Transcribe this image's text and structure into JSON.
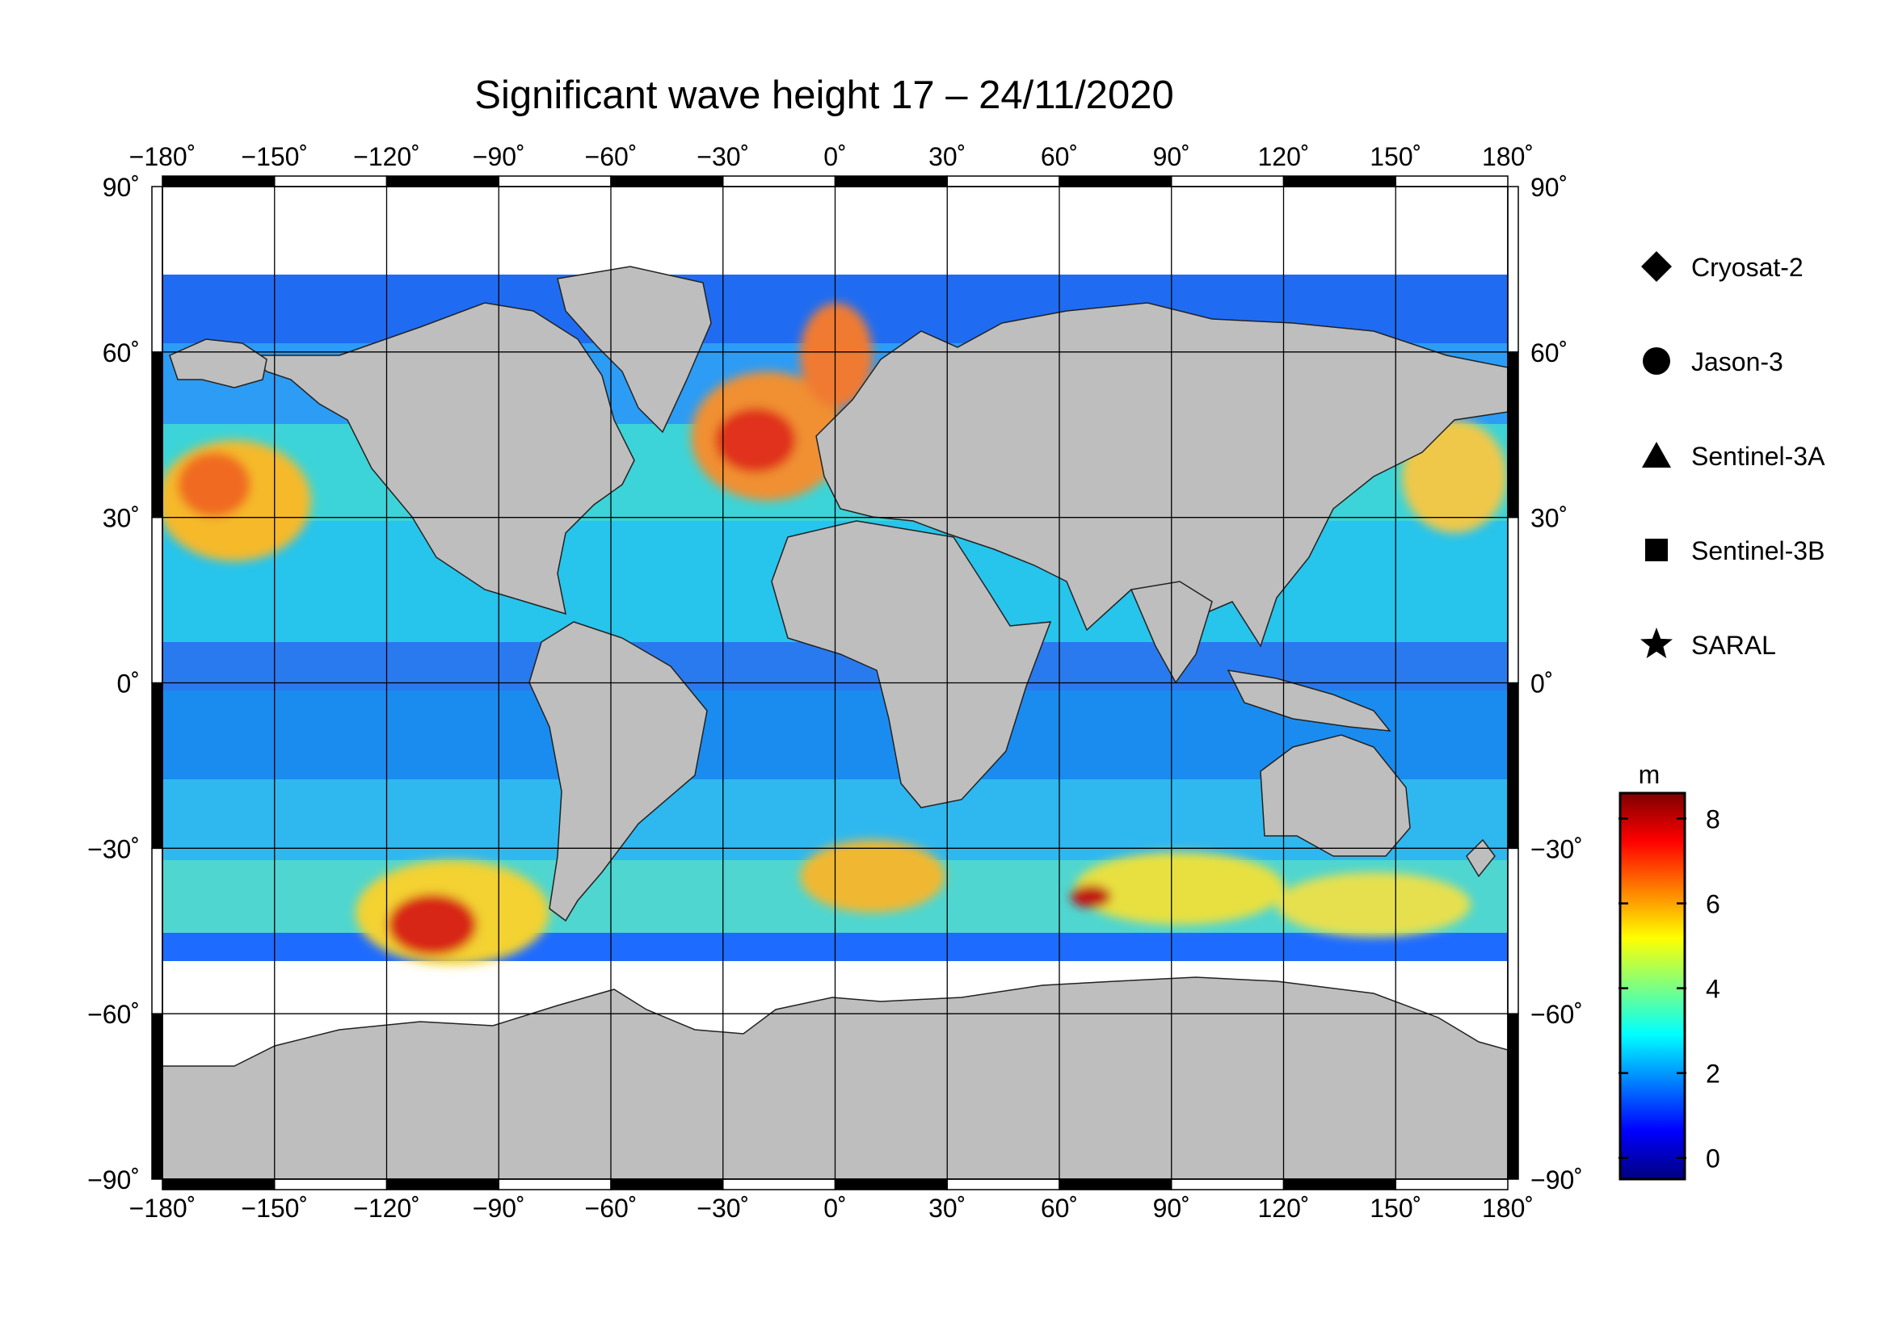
{
  "title": "Significant wave height 17 – 24/11/2020",
  "map": {
    "projection": "equirectangular",
    "lon_range": [
      -180,
      180
    ],
    "lat_range": [
      -90,
      90
    ],
    "grid": true,
    "lon_ticks": [
      -180,
      -150,
      -120,
      -90,
      -60,
      -30,
      0,
      30,
      60,
      90,
      120,
      150,
      180
    ],
    "lat_ticks": [
      -90,
      -60,
      -30,
      0,
      30,
      60,
      90
    ],
    "lon_tick_labels": [
      "−180˚",
      "−150˚",
      "−120˚",
      "−90˚",
      "−60˚",
      "−30˚",
      "0˚",
      "30˚",
      "60˚",
      "90˚",
      "120˚",
      "150˚",
      "180˚"
    ],
    "lat_tick_labels": [
      "−90˚",
      "−60˚",
      "−30˚",
      "0˚",
      "30˚",
      "60˚",
      "90˚"
    ],
    "land_color": "#bebebe",
    "ice_color": "#ffffff",
    "ocean_gap_color": "#ffffff"
  },
  "legend": {
    "placement": "right",
    "items": [
      {
        "label": "Cryosat-2",
        "symbol": "diamond"
      },
      {
        "label": "Jason-3",
        "symbol": "circle"
      },
      {
        "label": "Sentinel-3A",
        "symbol": "triangle"
      },
      {
        "label": "Sentinel-3B",
        "symbol": "square"
      },
      {
        "label": "SARAL",
        "symbol": "star"
      }
    ]
  },
  "colorbar": {
    "unit": "m",
    "min": -0.5,
    "max": 8.6,
    "ticks": [
      0,
      2,
      4,
      6,
      8
    ],
    "tick_labels": [
      "0",
      "2",
      "4",
      "6",
      "8"
    ],
    "colormap": [
      "#00007f",
      "#0000ff",
      "#007fff",
      "#00ffff",
      "#7fff7f",
      "#ffff00",
      "#ff7f00",
      "#ff0000",
      "#7f0000"
    ]
  }
}
